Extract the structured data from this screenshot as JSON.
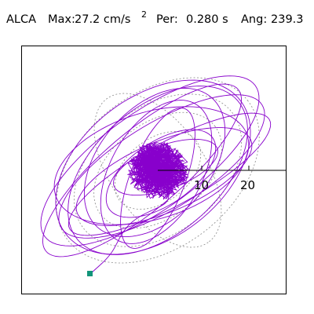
{
  "header": {
    "station": "ALCA",
    "max_label": "Max:",
    "max_value": "27.2 cm/s",
    "max_exponent": "2",
    "per_label": "Per:",
    "per_value": "0.280 s",
    "ang_label": "Ang:",
    "ang_value": "239.3"
  },
  "axis": {
    "tick_labels": [
      "10",
      "20"
    ]
  },
  "colors": {
    "trace": "#8800cc",
    "grid": "#8a8a8a",
    "marker": "#12957a",
    "axis": "#000000"
  }
}
